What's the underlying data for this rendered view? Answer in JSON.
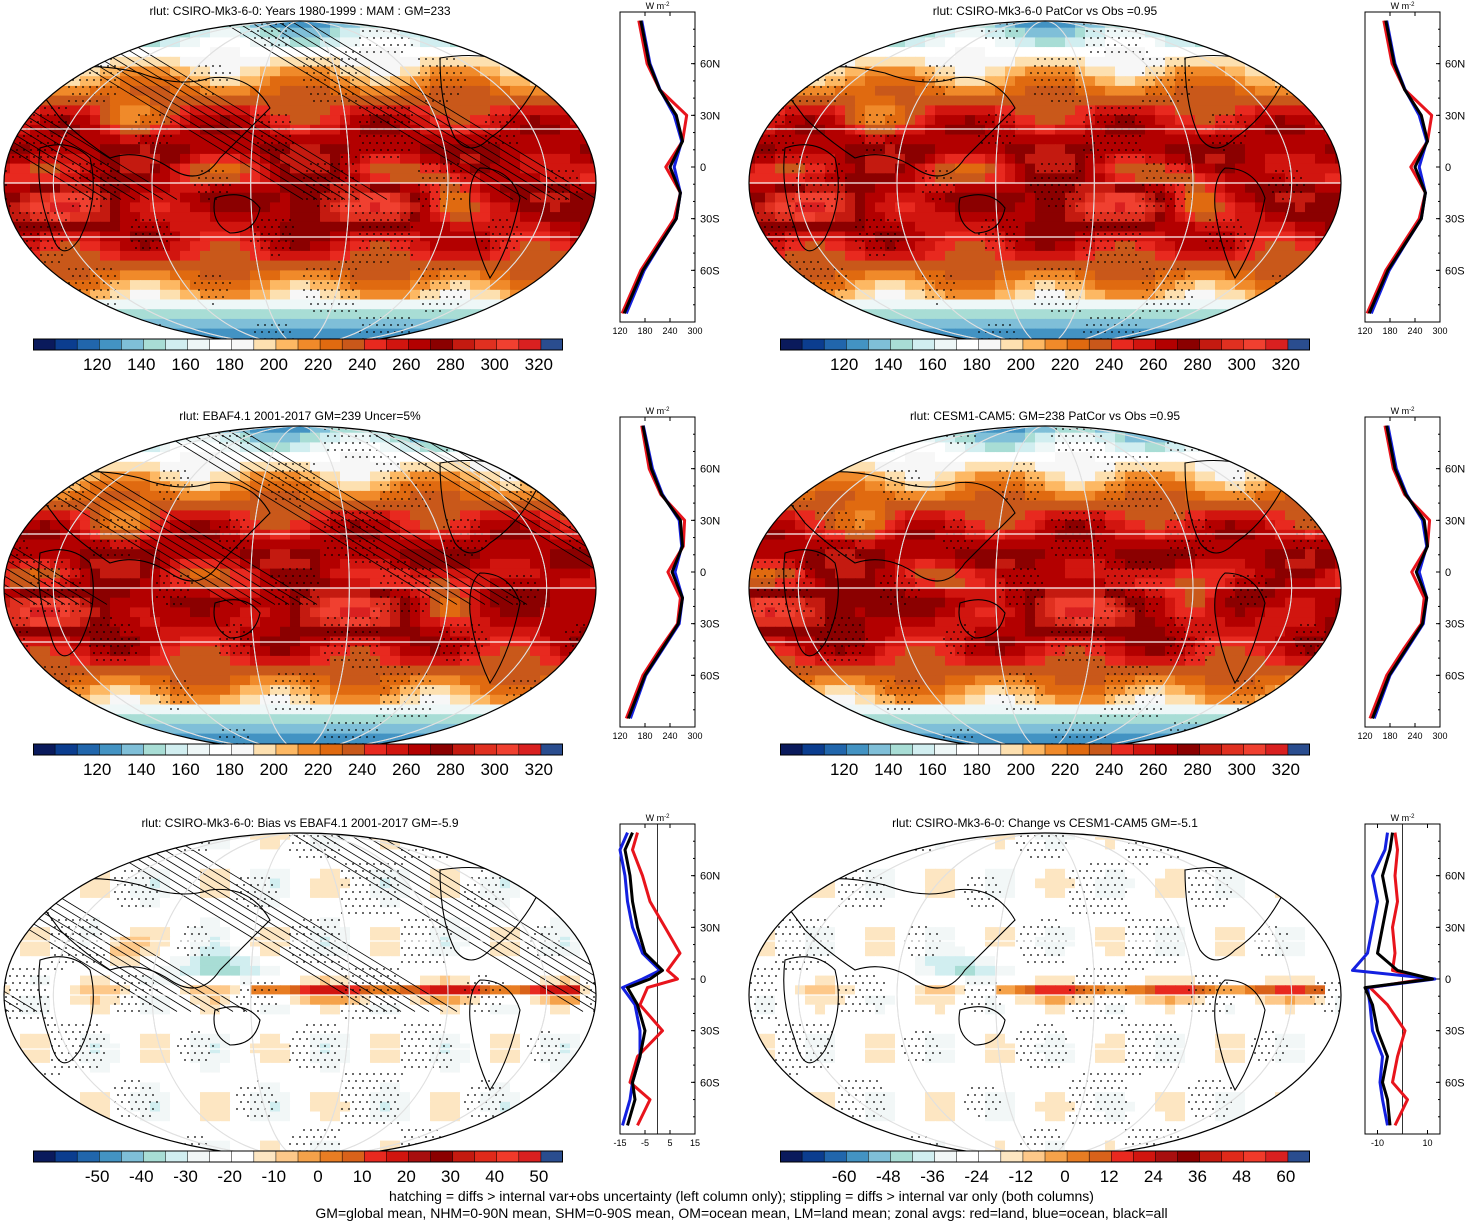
{
  "panels": [
    {
      "title": "rlut: CSIRO-Mk3-6-0: Years 1980-1999 : MAM : GM=233",
      "kind": "abs",
      "hatch": true,
      "bias": 0
    },
    {
      "title": "rlut: CSIRO-Mk3-6-0 PatCor vs Obs =0.95",
      "kind": "abs",
      "hatch": false,
      "bias": 0
    },
    {
      "title": "rlut: EBAF4.1 2001-2017 GM=239 Uncer=5%",
      "kind": "abs",
      "hatch": true,
      "bias": 1
    },
    {
      "title": "rlut: CESM1-CAM5: GM=238 PatCor vs Obs =0.95",
      "kind": "abs",
      "hatch": false,
      "bias": 2
    },
    {
      "title": "rlut: CSIRO-Mk3-6-0: Bias vs EBAF4.1 2001-2017 GM=-5.9",
      "kind": "diff",
      "hatch": true,
      "bias": 0
    },
    {
      "title": "rlut: CSIRO-Mk3-6-0: Change vs CESM1-CAM5 GM=-5.1",
      "kind": "diff",
      "hatch": false,
      "bias": 1
    }
  ],
  "colorbars": {
    "abs": {
      "colors": [
        "#0a1a5c",
        "#0b3d8f",
        "#2166ac",
        "#4393c3",
        "#7fbfd8",
        "#a8ddd5",
        "#d1eef0",
        "#eef7f7",
        "#ffffff",
        "#f7f7f7",
        "#fde0b0",
        "#fdb863",
        "#f08a2a",
        "#e06a10",
        "#c9581a",
        "#e8291f",
        "#d1150f",
        "#b30000",
        "#8b0000",
        "#c41a10",
        "#e03020",
        "#f04030",
        "#d92020",
        "#2a4d8f"
      ],
      "labels": [
        "120",
        "140",
        "160",
        "180",
        "200",
        "220",
        "240",
        "260",
        "280",
        "300",
        "320"
      ]
    },
    "bias": {
      "colors": [
        "#0a1a5c",
        "#0b3d8f",
        "#2166ac",
        "#4393c3",
        "#7fbfd8",
        "#a8ddd5",
        "#d1eef0",
        "#f2f7f7",
        "#ffffff",
        "#ffffff",
        "#fde6c2",
        "#fdc889",
        "#f5a24a",
        "#e87d23",
        "#d9621a",
        "#e8291f",
        "#d1150f",
        "#a80f0f",
        "#8b0000",
        "#c41a10",
        "#e02a1a",
        "#f03a2a",
        "#d92020",
        "#2a4d8f"
      ],
      "labels": [
        "-50",
        "-40",
        "-30",
        "-20",
        "-10",
        "0",
        "10",
        "20",
        "30",
        "40",
        "50"
      ]
    },
    "change": {
      "colors": [
        "#0a1a5c",
        "#0b3d8f",
        "#2166ac",
        "#4393c3",
        "#7fbfd8",
        "#a8ddd5",
        "#d1eef0",
        "#f2f7f7",
        "#ffffff",
        "#ffffff",
        "#fde6c2",
        "#fdc889",
        "#f5a24a",
        "#e87d23",
        "#d9621a",
        "#e8291f",
        "#d1150f",
        "#a80f0f",
        "#8b0000",
        "#c41a10",
        "#e02a1a",
        "#f03a2a",
        "#d92020",
        "#2a4d8f"
      ],
      "labels": [
        "-60",
        "-48",
        "-36",
        "-24",
        "-12",
        "0",
        "12",
        "24",
        "36",
        "48",
        "60"
      ]
    }
  },
  "zonal_axes": {
    "unit": "W m",
    "unit_sup": "-2",
    "lat_labels": [
      "60N",
      "30N",
      "0",
      "30S",
      "60S"
    ],
    "abs_ticks": [
      "120",
      "180",
      "240",
      "300"
    ],
    "bias_ticks": [
      "-15",
      "-5",
      "5",
      "15"
    ],
    "change_ticks": [
      "-10",
      "10"
    ]
  },
  "footer": {
    "line1": "hatching = diffs > internal var+obs uncertainty (left column only); stippling = diffs > internal var only (both columns)",
    "line2": "GM=global mean, NHM=0-90N mean, SHM=0-90S mean, OM=ocean mean, LM=land mean; zonal avgs: red=land, blue=ocean, black=all"
  },
  "legend_colors": {
    "land": "#e8141c",
    "ocean": "#1420e0",
    "all": "#000000"
  },
  "chart_data": [
    {
      "type": "heatmap",
      "title": "rlut: CSIRO-Mk3-6-0: Years 1980-1999 : MAM : GM=233",
      "units": "W m-2",
      "colorbar_range": [
        120,
        320
      ],
      "zonal_mean": {
        "lat": [
          -85,
          -60,
          -45,
          -30,
          -15,
          0,
          15,
          30,
          45,
          60,
          85
        ],
        "all": [
          130,
          175,
          215,
          255,
          265,
          240,
          270,
          255,
          215,
          190,
          170
        ],
        "land": [
          125,
          170,
          210,
          250,
          265,
          230,
          270,
          280,
          215,
          185,
          165
        ],
        "ocean": [
          135,
          178,
          216,
          255,
          265,
          250,
          268,
          250,
          216,
          192,
          172
        ]
      }
    },
    {
      "type": "heatmap",
      "title": "rlut: CSIRO-Mk3-6-0 PatCor vs Obs =0.95",
      "units": "W m-2",
      "colorbar_range": [
        120,
        320
      ],
      "zonal_mean": {
        "lat": [
          -85,
          -60,
          -45,
          -30,
          -15,
          0,
          15,
          30,
          45,
          60,
          85
        ],
        "all": [
          130,
          175,
          215,
          255,
          265,
          240,
          270,
          255,
          215,
          190,
          170
        ],
        "land": [
          125,
          170,
          210,
          250,
          265,
          230,
          270,
          280,
          215,
          185,
          165
        ],
        "ocean": [
          135,
          178,
          216,
          255,
          265,
          250,
          268,
          250,
          216,
          192,
          172
        ]
      }
    },
    {
      "type": "heatmap",
      "title": "rlut: EBAF4.1 2001-2017 GM=239 Uncer=5%",
      "units": "W m-2",
      "colorbar_range": [
        120,
        320
      ],
      "zonal_mean": {
        "lat": [
          -85,
          -60,
          -45,
          -30,
          -15,
          0,
          15,
          30,
          45,
          60,
          85
        ],
        "all": [
          140,
          180,
          220,
          260,
          270,
          245,
          270,
          265,
          220,
          195,
          175
        ],
        "land": [
          135,
          175,
          215,
          258,
          265,
          235,
          272,
          275,
          218,
          190,
          172
        ],
        "ocean": [
          145,
          182,
          222,
          262,
          270,
          252,
          268,
          262,
          222,
          198,
          176
        ]
      }
    },
    {
      "type": "heatmap",
      "title": "rlut: CESM1-CAM5: GM=238 PatCor vs Obs =0.95",
      "units": "W m-2",
      "colorbar_range": [
        120,
        320
      ],
      "zonal_mean": {
        "lat": [
          -85,
          -60,
          -45,
          -30,
          -15,
          0,
          15,
          30,
          45,
          60,
          85
        ],
        "all": [
          138,
          178,
          218,
          258,
          268,
          243,
          270,
          262,
          218,
          192,
          172
        ],
        "land": [
          132,
          172,
          212,
          255,
          262,
          232,
          270,
          275,
          215,
          188,
          168
        ],
        "ocean": [
          142,
          180,
          220,
          260,
          268,
          250,
          268,
          258,
          220,
          195,
          175
        ]
      }
    },
    {
      "type": "heatmap",
      "title": "rlut: CSIRO-Mk3-6-0: Bias vs EBAF4.1 2001-2017 GM=-5.9",
      "units": "W m-2",
      "colorbar_range": [
        -50,
        50
      ],
      "zonal_mean": {
        "lat": [
          -85,
          -70,
          -60,
          -45,
          -30,
          -15,
          -5,
          0,
          5,
          15,
          30,
          45,
          60,
          75,
          85
        ],
        "all": [
          -12,
          -9,
          -10,
          -7,
          -5,
          -8,
          -12,
          -3,
          2,
          -5,
          -8,
          -10,
          -11,
          -13,
          -10
        ],
        "land": [
          -8,
          -3,
          -11,
          -8,
          2,
          -7,
          -4,
          8,
          4,
          9,
          3,
          -3,
          -6,
          -10,
          -8
        ],
        "ocean": [
          -14,
          -11,
          -10,
          -7,
          -7,
          -9,
          -14,
          -6,
          1,
          -6,
          -10,
          -12,
          -13,
          -15,
          -12
        ]
      }
    },
    {
      "type": "heatmap",
      "title": "rlut: CSIRO-Mk3-6-0: Change vs CESM1-CAM5 GM=-5.1",
      "units": "W m-2",
      "colorbar_range": [
        -60,
        60
      ],
      "zonal_mean": {
        "lat": [
          -85,
          -70,
          -60,
          -45,
          -30,
          -15,
          -5,
          0,
          5,
          15,
          30,
          45,
          60,
          75,
          85
        ],
        "all": [
          -5,
          -6,
          -8,
          -6,
          -10,
          -12,
          -15,
          12,
          -2,
          -10,
          -8,
          -6,
          -8,
          -5,
          -4
        ],
        "land": [
          -3,
          2,
          -4,
          -2,
          1,
          -6,
          -13,
          9,
          -4,
          -3,
          -4,
          -2,
          -3,
          -2,
          -3
        ],
        "ocean": [
          -6,
          -8,
          -9,
          -8,
          -12,
          -13,
          -14,
          13,
          -20,
          -14,
          -12,
          -10,
          -12,
          -7,
          -6
        ]
      }
    }
  ]
}
